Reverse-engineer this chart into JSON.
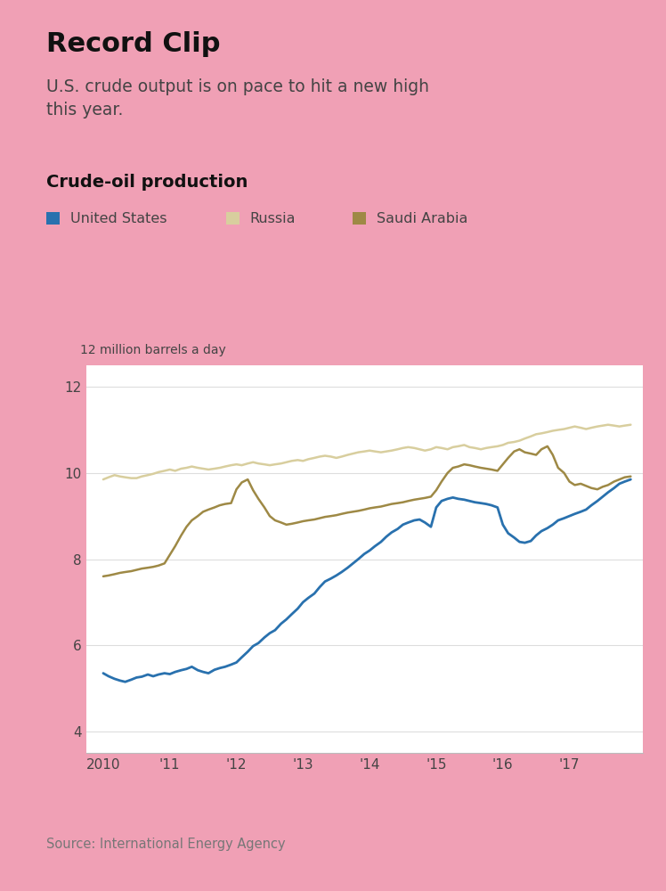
{
  "title": "Record Clip",
  "subtitle": "U.S. crude output is on pace to hit a new high\nthis year.",
  "chart_title": "Crude-oil production",
  "ylabel": "12 million barrels a day",
  "source": "Source: International Energy Agency",
  "outer_bg": "#f0a0b5",
  "inner_bg": "#ffffff",
  "text_color_dark": "#111111",
  "text_color_mid": "#444444",
  "text_color_light": "#777777",
  "legend": [
    {
      "label": "United States",
      "color": "#2971ae"
    },
    {
      "label": "Russia",
      "color": "#d8ce9e"
    },
    {
      "label": "Saudi Arabia",
      "color": "#9e8945"
    }
  ],
  "ylim": [
    3.5,
    12.5
  ],
  "yticks": [
    4,
    6,
    8,
    10,
    12
  ],
  "xlim_start": 2009.75,
  "xlim_end": 2018.1,
  "xtick_years": [
    2010,
    2011,
    2012,
    2013,
    2014,
    2015,
    2016,
    2017
  ],
  "xtick_labels": [
    "2010",
    "'11",
    "'12",
    "'13",
    "'14",
    "'15",
    "'16",
    "'17"
  ],
  "us_x": [
    2010.0,
    2010.08,
    2010.17,
    2010.25,
    2010.33,
    2010.42,
    2010.5,
    2010.58,
    2010.67,
    2010.75,
    2010.83,
    2010.92,
    2011.0,
    2011.08,
    2011.17,
    2011.25,
    2011.33,
    2011.42,
    2011.5,
    2011.58,
    2011.67,
    2011.75,
    2011.83,
    2011.92,
    2012.0,
    2012.08,
    2012.17,
    2012.25,
    2012.33,
    2012.42,
    2012.5,
    2012.58,
    2012.67,
    2012.75,
    2012.83,
    2012.92,
    2013.0,
    2013.08,
    2013.17,
    2013.25,
    2013.33,
    2013.42,
    2013.5,
    2013.58,
    2013.67,
    2013.75,
    2013.83,
    2013.92,
    2014.0,
    2014.08,
    2014.17,
    2014.25,
    2014.33,
    2014.42,
    2014.5,
    2014.58,
    2014.67,
    2014.75,
    2014.83,
    2014.92,
    2015.0,
    2015.08,
    2015.17,
    2015.25,
    2015.33,
    2015.42,
    2015.5,
    2015.58,
    2015.67,
    2015.75,
    2015.83,
    2015.92,
    2016.0,
    2016.08,
    2016.17,
    2016.25,
    2016.33,
    2016.42,
    2016.5,
    2016.58,
    2016.67,
    2016.75,
    2016.83,
    2016.92,
    2017.0,
    2017.08,
    2017.17,
    2017.25,
    2017.33,
    2017.42,
    2017.5,
    2017.58,
    2017.67,
    2017.75,
    2017.83,
    2017.92
  ],
  "us_y": [
    5.35,
    5.28,
    5.22,
    5.18,
    5.15,
    5.2,
    5.25,
    5.27,
    5.32,
    5.28,
    5.32,
    5.35,
    5.33,
    5.38,
    5.42,
    5.45,
    5.5,
    5.42,
    5.38,
    5.35,
    5.43,
    5.47,
    5.5,
    5.55,
    5.6,
    5.72,
    5.85,
    5.98,
    6.05,
    6.18,
    6.28,
    6.35,
    6.5,
    6.6,
    6.72,
    6.85,
    7.0,
    7.1,
    7.2,
    7.35,
    7.48,
    7.55,
    7.62,
    7.7,
    7.8,
    7.9,
    8.0,
    8.12,
    8.2,
    8.3,
    8.4,
    8.52,
    8.62,
    8.7,
    8.8,
    8.85,
    8.9,
    8.92,
    8.85,
    8.75,
    9.2,
    9.35,
    9.4,
    9.43,
    9.4,
    9.38,
    9.35,
    9.32,
    9.3,
    9.28,
    9.25,
    9.2,
    8.8,
    8.6,
    8.5,
    8.4,
    8.38,
    8.42,
    8.55,
    8.65,
    8.72,
    8.8,
    8.9,
    8.95,
    9.0,
    9.05,
    9.1,
    9.15,
    9.25,
    9.35,
    9.45,
    9.55,
    9.65,
    9.75,
    9.8,
    9.85
  ],
  "russia_x": [
    2010.0,
    2010.08,
    2010.17,
    2010.25,
    2010.33,
    2010.42,
    2010.5,
    2010.58,
    2010.67,
    2010.75,
    2010.83,
    2010.92,
    2011.0,
    2011.08,
    2011.17,
    2011.25,
    2011.33,
    2011.42,
    2011.5,
    2011.58,
    2011.67,
    2011.75,
    2011.83,
    2011.92,
    2012.0,
    2012.08,
    2012.17,
    2012.25,
    2012.33,
    2012.42,
    2012.5,
    2012.58,
    2012.67,
    2012.75,
    2012.83,
    2012.92,
    2013.0,
    2013.08,
    2013.17,
    2013.25,
    2013.33,
    2013.42,
    2013.5,
    2013.58,
    2013.67,
    2013.75,
    2013.83,
    2013.92,
    2014.0,
    2014.08,
    2014.17,
    2014.25,
    2014.33,
    2014.42,
    2014.5,
    2014.58,
    2014.67,
    2014.75,
    2014.83,
    2014.92,
    2015.0,
    2015.08,
    2015.17,
    2015.25,
    2015.33,
    2015.42,
    2015.5,
    2015.58,
    2015.67,
    2015.75,
    2015.83,
    2015.92,
    2016.0,
    2016.08,
    2016.17,
    2016.25,
    2016.33,
    2016.42,
    2016.5,
    2016.58,
    2016.67,
    2016.75,
    2016.83,
    2016.92,
    2017.0,
    2017.08,
    2017.17,
    2017.25,
    2017.33,
    2017.42,
    2017.5,
    2017.58,
    2017.67,
    2017.75,
    2017.83,
    2017.92
  ],
  "russia_y": [
    9.85,
    9.9,
    9.95,
    9.92,
    9.9,
    9.88,
    9.88,
    9.92,
    9.95,
    9.98,
    10.02,
    10.05,
    10.08,
    10.05,
    10.1,
    10.12,
    10.15,
    10.12,
    10.1,
    10.08,
    10.1,
    10.12,
    10.15,
    10.18,
    10.2,
    10.18,
    10.22,
    10.25,
    10.22,
    10.2,
    10.18,
    10.2,
    10.22,
    10.25,
    10.28,
    10.3,
    10.28,
    10.32,
    10.35,
    10.38,
    10.4,
    10.38,
    10.35,
    10.38,
    10.42,
    10.45,
    10.48,
    10.5,
    10.52,
    10.5,
    10.48,
    10.5,
    10.52,
    10.55,
    10.58,
    10.6,
    10.58,
    10.55,
    10.52,
    10.55,
    10.6,
    10.58,
    10.55,
    10.6,
    10.62,
    10.65,
    10.6,
    10.58,
    10.55,
    10.58,
    10.6,
    10.62,
    10.65,
    10.7,
    10.72,
    10.75,
    10.8,
    10.85,
    10.9,
    10.92,
    10.95,
    10.98,
    11.0,
    11.02,
    11.05,
    11.08,
    11.05,
    11.02,
    11.05,
    11.08,
    11.1,
    11.12,
    11.1,
    11.08,
    11.1,
    11.12
  ],
  "saudi_x": [
    2010.0,
    2010.08,
    2010.17,
    2010.25,
    2010.33,
    2010.42,
    2010.5,
    2010.58,
    2010.67,
    2010.75,
    2010.83,
    2010.92,
    2011.0,
    2011.08,
    2011.17,
    2011.25,
    2011.33,
    2011.42,
    2011.5,
    2011.58,
    2011.67,
    2011.75,
    2011.83,
    2011.92,
    2012.0,
    2012.08,
    2012.17,
    2012.25,
    2012.33,
    2012.42,
    2012.5,
    2012.58,
    2012.67,
    2012.75,
    2012.83,
    2012.92,
    2013.0,
    2013.08,
    2013.17,
    2013.25,
    2013.33,
    2013.42,
    2013.5,
    2013.58,
    2013.67,
    2013.75,
    2013.83,
    2013.92,
    2014.0,
    2014.08,
    2014.17,
    2014.25,
    2014.33,
    2014.42,
    2014.5,
    2014.58,
    2014.67,
    2014.75,
    2014.83,
    2014.92,
    2015.0,
    2015.08,
    2015.17,
    2015.25,
    2015.33,
    2015.42,
    2015.5,
    2015.58,
    2015.67,
    2015.75,
    2015.83,
    2015.92,
    2016.0,
    2016.08,
    2016.17,
    2016.25,
    2016.33,
    2016.42,
    2016.5,
    2016.58,
    2016.67,
    2016.75,
    2016.83,
    2016.92,
    2017.0,
    2017.08,
    2017.17,
    2017.25,
    2017.33,
    2017.42,
    2017.5,
    2017.58,
    2017.67,
    2017.75,
    2017.83,
    2017.92
  ],
  "saudi_y": [
    7.6,
    7.62,
    7.65,
    7.68,
    7.7,
    7.72,
    7.75,
    7.78,
    7.8,
    7.82,
    7.85,
    7.9,
    8.1,
    8.3,
    8.55,
    8.75,
    8.9,
    9.0,
    9.1,
    9.15,
    9.2,
    9.25,
    9.28,
    9.3,
    9.62,
    9.78,
    9.85,
    9.6,
    9.4,
    9.2,
    9.0,
    8.9,
    8.85,
    8.8,
    8.82,
    8.85,
    8.88,
    8.9,
    8.92,
    8.95,
    8.98,
    9.0,
    9.02,
    9.05,
    9.08,
    9.1,
    9.12,
    9.15,
    9.18,
    9.2,
    9.22,
    9.25,
    9.28,
    9.3,
    9.32,
    9.35,
    9.38,
    9.4,
    9.42,
    9.45,
    9.6,
    9.8,
    10.0,
    10.12,
    10.15,
    10.2,
    10.18,
    10.15,
    10.12,
    10.1,
    10.08,
    10.05,
    10.2,
    10.35,
    10.5,
    10.55,
    10.48,
    10.45,
    10.42,
    10.55,
    10.62,
    10.42,
    10.12,
    10.0,
    9.8,
    9.72,
    9.75,
    9.7,
    9.65,
    9.62,
    9.68,
    9.72,
    9.8,
    9.85,
    9.9,
    9.92
  ]
}
